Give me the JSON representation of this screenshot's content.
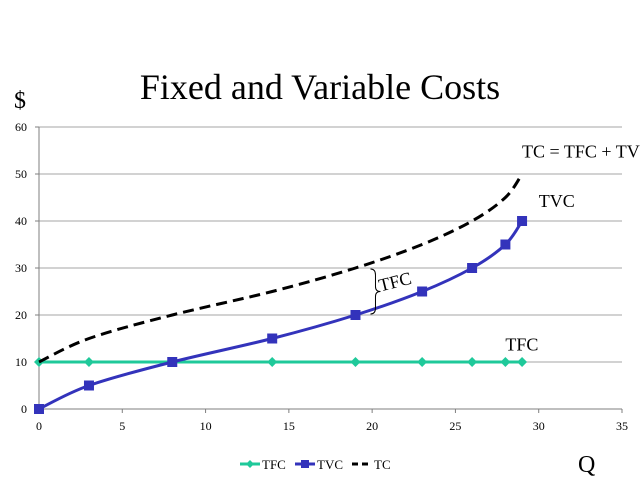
{
  "chart_data": {
    "type": "line",
    "title": "Fixed and Variable Costs",
    "xlabel": "Q",
    "ylabel": "$",
    "xlim": [
      0,
      35
    ],
    "ylim": [
      0,
      60
    ],
    "x_ticks": [
      0,
      5,
      10,
      15,
      20,
      25,
      30,
      35
    ],
    "y_ticks": [
      0,
      10,
      20,
      30,
      40,
      50,
      60
    ],
    "grid": "horizontal",
    "legend_position": "bottom",
    "series": [
      {
        "name": "TFC",
        "color": "#1fc99a",
        "marker": "diamond",
        "points": [
          [
            0,
            10
          ],
          [
            3,
            10
          ],
          [
            8,
            10
          ],
          [
            14,
            10
          ],
          [
            19,
            10
          ],
          [
            23,
            10
          ],
          [
            26,
            10
          ],
          [
            28,
            10
          ],
          [
            29,
            10
          ]
        ]
      },
      {
        "name": "TVC",
        "color": "#3333bb",
        "marker": "square",
        "points": [
          [
            0,
            0
          ],
          [
            3,
            5
          ],
          [
            8,
            10
          ],
          [
            14,
            15
          ],
          [
            19,
            20
          ],
          [
            23,
            25
          ],
          [
            26,
            30
          ],
          [
            28,
            35
          ],
          [
            29,
            40
          ]
        ]
      },
      {
        "name": "TC",
        "color": "#000000",
        "dashed": true,
        "points": [
          [
            0,
            10
          ],
          [
            3,
            15
          ],
          [
            8,
            20
          ],
          [
            14,
            25
          ],
          [
            19,
            30
          ],
          [
            23,
            35
          ],
          [
            26,
            40
          ],
          [
            28,
            45
          ],
          [
            29,
            50
          ]
        ]
      }
    ],
    "annotations": [
      {
        "text": "TC = TFC + TVC",
        "x": 29,
        "y": 53.5
      },
      {
        "text": "TVC",
        "x": 30,
        "y": 43
      },
      {
        "text": "TFC",
        "x": 28,
        "y": 12.5
      },
      {
        "text": "TFC",
        "x": 20.5,
        "y": 25,
        "bracket": [
          20,
          30
        ]
      }
    ]
  }
}
